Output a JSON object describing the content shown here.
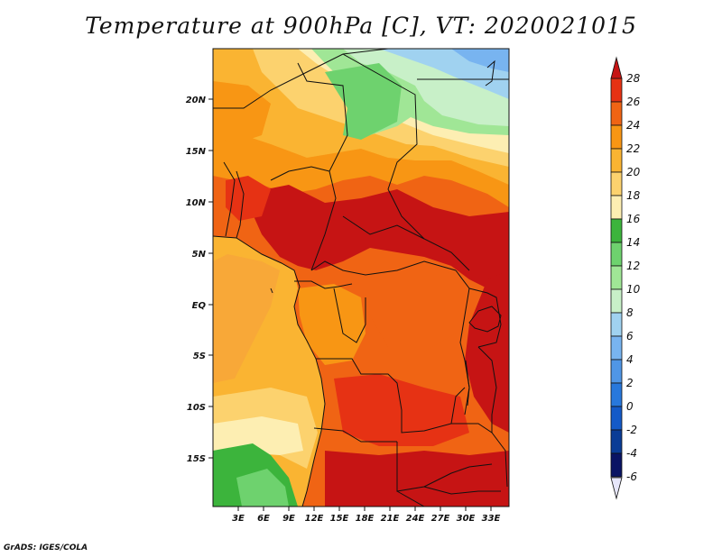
{
  "title": "Temperature at 900hPa [C], VT: 2020021015",
  "credit": "GrADS: IGES/COLA",
  "x_ticks": [
    "3E",
    "6E",
    "9E",
    "12E",
    "15E",
    "18E",
    "21E",
    "24E",
    "27E",
    "30E",
    "33E"
  ],
  "y_ticks": [
    "20N",
    "15N",
    "10N",
    "5N",
    "EQ",
    "5S",
    "10S",
    "15S"
  ],
  "colorbar": {
    "labels": [
      "28",
      "26",
      "24",
      "22",
      "20",
      "18",
      "16",
      "14",
      "12",
      "10",
      "8",
      "6",
      "4",
      "2",
      "0",
      "-2",
      "-4",
      "-6"
    ],
    "colors": [
      "#c61414",
      "#e63214",
      "#f06414",
      "#f89614",
      "#fab432",
      "#fcd26e",
      "#fdeeb2",
      "#3cb43c",
      "#6ed26e",
      "#a0e696",
      "#c8f0c8",
      "#a0d2f0",
      "#78b4f0",
      "#5096e6",
      "#2878dc",
      "#145ac8",
      "#0a3c96",
      "#0a1464"
    ]
  },
  "legend_icons": [
    "up-arrow-icon",
    "down-arrow-icon"
  ]
}
